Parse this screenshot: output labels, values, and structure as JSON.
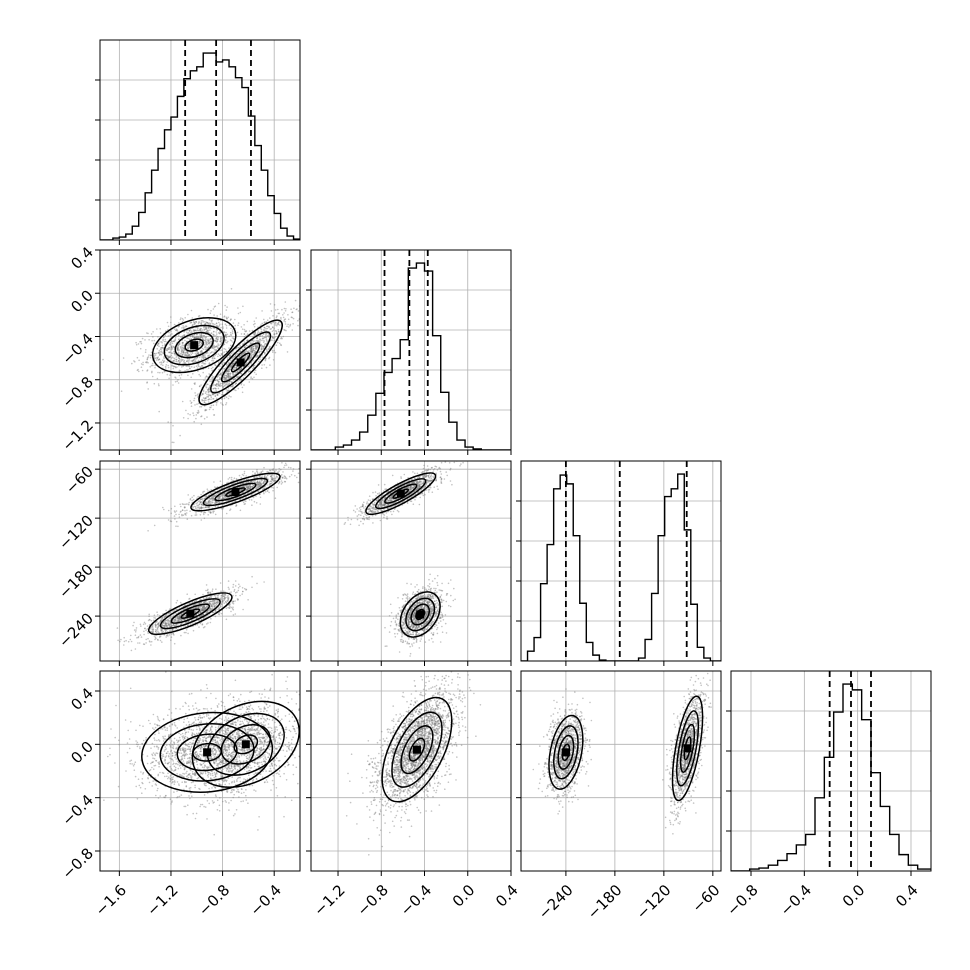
{
  "chart_data": {
    "type": "corner",
    "parameters": [
      "",
      "",
      "",
      ""
    ],
    "ranges": [
      [
        -1.75,
        -0.2
      ],
      [
        -1.45,
        0.4
      ],
      [
        -295,
        -50
      ],
      [
        -0.95,
        0.55
      ]
    ],
    "ticks": {
      "0": [
        "-1.6",
        "-1.2",
        "-0.8",
        "-0.4"
      ],
      "1": [
        "-1.2",
        "-0.8",
        "-0.4",
        "0.0",
        "0.4"
      ],
      "2": [
        "-240",
        "-180",
        "-120",
        "-60"
      ],
      "3": [
        "-0.8",
        "-0.4",
        "0.0",
        "0.4"
      ]
    },
    "ytick_rows": {
      "1": [
        "0.4",
        "0.0",
        "-0.4",
        "-0.8",
        "-1.2"
      ],
      "2": [
        "-60",
        "-120",
        "-180",
        "-240"
      ],
      "3": [
        "0.4",
        "0.0",
        "-0.4",
        "-0.8"
      ]
    },
    "quantiles": [
      [
        -1.09,
        -0.85,
        -0.58
      ],
      [
        -0.77,
        -0.54,
        -0.37
      ],
      [
        -240,
        -174,
        -92
      ],
      [
        -0.21,
        -0.05,
        0.1
      ]
    ],
    "histograms": [
      {
        "bins": [
          -1.75,
          -1.7,
          -1.65,
          -1.6,
          -1.55,
          -1.5,
          -1.45,
          -1.4,
          -1.35,
          -1.3,
          -1.25,
          -1.2,
          -1.15,
          -1.1,
          -1.05,
          -1.0,
          -0.95,
          -0.9,
          -0.85,
          -0.8,
          -0.75,
          -0.7,
          -0.65,
          -0.6,
          -0.55,
          -0.5,
          -0.45,
          -0.4,
          -0.35,
          -0.3,
          -0.25,
          -0.2
        ],
        "counts": [
          0,
          0,
          2,
          3,
          6,
          14,
          28,
          48,
          71,
          93,
          112,
          125,
          146,
          164,
          172,
          176,
          190,
          190,
          181,
          183,
          176,
          165,
          155,
          126,
          96,
          71,
          45,
          27,
          12,
          4,
          1
        ]
      },
      {
        "bins": [
          -1.45,
          -1.375,
          -1.3,
          -1.225,
          -1.15,
          -1.075,
          -1.0,
          -0.925,
          -0.85,
          -0.775,
          -0.7,
          -0.625,
          -0.55,
          -0.475,
          -0.4,
          -0.325,
          -0.25,
          -0.175,
          -0.1,
          -0.025,
          0.05,
          0.125,
          0.2,
          0.275,
          0.35,
          0.4
        ],
        "counts": [
          0,
          0,
          0,
          3,
          5,
          10,
          18,
          35,
          57,
          78,
          92,
          111,
          183,
          188,
          180,
          115,
          58,
          28,
          10,
          3,
          1,
          0,
          0,
          0,
          0
        ]
      },
      {
        "bins": [
          -295,
          -287,
          -279,
          -271,
          -263,
          -255,
          -247,
          -239,
          -231,
          -223,
          -215,
          -207,
          -199,
          -191,
          -183,
          -175,
          -167,
          -159,
          -151,
          -143,
          -135,
          -127,
          -119,
          -111,
          -103,
          -95,
          -87,
          -79,
          -71,
          -63,
          -55,
          -50
        ],
        "counts": [
          0,
          10,
          24,
          79,
          119,
          176,
          190,
          181,
          128,
          59,
          19,
          6,
          1,
          0,
          0,
          0,
          0,
          0,
          3,
          22,
          69,
          128,
          168,
          176,
          191,
          134,
          58,
          14,
          3,
          0,
          0
        ]
      },
      {
        "bins": [
          -0.95,
          -0.88,
          -0.81,
          -0.74,
          -0.67,
          -0.6,
          -0.53,
          -0.46,
          -0.39,
          -0.32,
          -0.25,
          -0.18,
          -0.11,
          -0.04,
          0.03,
          0.1,
          0.17,
          0.24,
          0.31,
          0.38,
          0.45,
          0.55
        ],
        "counts": [
          0,
          0,
          2,
          3,
          6,
          11,
          18,
          27,
          38,
          76,
          118,
          165,
          194,
          188,
          157,
          102,
          67,
          38,
          17,
          6,
          2
        ]
      }
    ],
    "modes_2d": {
      "1_0": [
        {
          "cx": -1.02,
          "cy": -0.48,
          "sx": 0.14,
          "sy": 0.11,
          "rho": 0.35,
          "w": 0.5
        },
        {
          "cx": -0.66,
          "cy": -0.64,
          "sx": 0.14,
          "sy": 0.17,
          "rho": 0.88,
          "w": 0.5
        }
      ],
      "2_0": [
        {
          "cx": -0.7,
          "cy": -88,
          "sx": 0.15,
          "sy": 10,
          "rho": 0.82,
          "w": 0.5
        },
        {
          "cx": -1.05,
          "cy": -237,
          "sx": 0.14,
          "sy": 11,
          "rho": 0.8,
          "w": 0.5
        }
      ],
      "2_1": [
        {
          "cx": -0.62,
          "cy": -90,
          "sx": 0.14,
          "sy": 11,
          "rho": 0.85,
          "w": 0.5
        },
        {
          "cx": -0.44,
          "cy": -238,
          "sx": 0.08,
          "sy": 12,
          "rho": 0.35,
          "w": 0.5
        }
      ],
      "3_0": [
        {
          "cx": -0.92,
          "cy": -0.06,
          "sx": 0.22,
          "sy": 0.13,
          "rho": 0.1,
          "w": 0.55
        },
        {
          "cx": -0.62,
          "cy": 0.0,
          "sx": 0.18,
          "sy": 0.14,
          "rho": 0.3,
          "w": 0.45
        }
      ],
      "3_1": [
        {
          "cx": -0.47,
          "cy": -0.04,
          "sx": 0.14,
          "sy": 0.17,
          "rho": 0.55,
          "w": 1.0
        }
      ],
      "3_2": [
        {
          "cx": -240,
          "cy": -0.06,
          "sx": 9,
          "sy": 0.12,
          "rho": 0.35,
          "w": 0.5
        },
        {
          "cx": -91,
          "cy": -0.03,
          "sx": 8,
          "sy": 0.17,
          "rho": 0.6,
          "w": 0.5
        }
      ]
    }
  }
}
